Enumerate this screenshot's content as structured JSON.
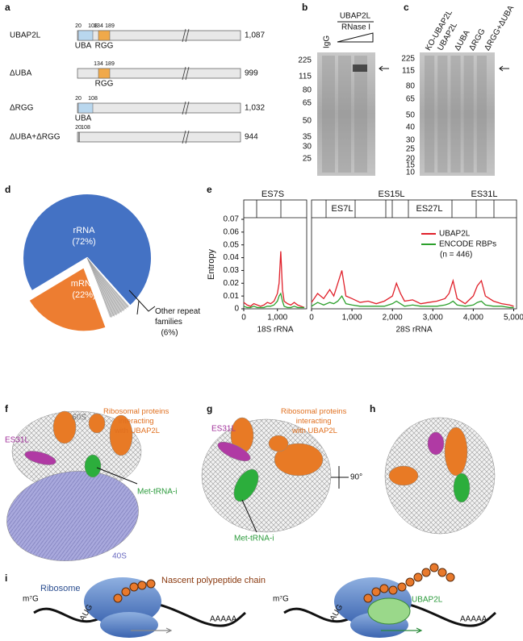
{
  "panel_letters": [
    "a",
    "b",
    "c",
    "d",
    "e",
    "f",
    "g",
    "h",
    "i"
  ],
  "a": {
    "rows": [
      {
        "name": "UBAP2L",
        "length": "1,087",
        "positions": [
          "20",
          "108",
          "134",
          "189"
        ],
        "domains": [
          "UBA",
          "RGG"
        ]
      },
      {
        "name": "ΔUBA",
        "length": "999",
        "positions": [
          "134",
          "189"
        ],
        "domains": [
          "RGG"
        ]
      },
      {
        "name": "ΔRGG",
        "length": "1,032",
        "positions": [
          "20",
          "108"
        ],
        "domains": [
          "UBA"
        ]
      },
      {
        "name": "ΔUBA+ΔRGG",
        "length": "944",
        "positions": [
          "20",
          "108"
        ],
        "domains": []
      }
    ]
  },
  "b": {
    "header": "UBAP2L",
    "treatment": "RNase I",
    "lanes": [
      "IgG"
    ],
    "markers": [
      "225",
      "115",
      "80",
      "65",
      "50",
      "35",
      "30",
      "25"
    ]
  },
  "c": {
    "lanes": [
      "KO-UBAP2L",
      "UBAP2L",
      "ΔUBA",
      "ΔRGG",
      "ΔRGG+ΔUBA"
    ],
    "markers": [
      "225",
      "115",
      "80",
      "65",
      "50",
      "40",
      "30",
      "25",
      "20",
      "15",
      "10"
    ]
  },
  "chart_data": [
    {
      "type": "pie",
      "categories": [
        "rRNA",
        "mRNA",
        "Other repeat families"
      ],
      "values": [
        72,
        22,
        6
      ],
      "value_labels": [
        "(72%)",
        "(22%)",
        "(6%)"
      ],
      "colors": [
        "#4472c4",
        "#ed7d31",
        "#c8c8c8"
      ]
    },
    {
      "type": "line",
      "ylabel": "Entropy",
      "ylim": [
        0,
        0.07
      ],
      "yticks": [
        0,
        0.01,
        0.02,
        0.03,
        0.04,
        0.05,
        0.06,
        0.07
      ],
      "region_labels": [
        "ES7S",
        "ES7L",
        "ES15L",
        "ES27L",
        "ES31L"
      ],
      "series": [
        {
          "name": "UBAP2L",
          "color": "#e0202a"
        },
        {
          "name": "ENCODE RBPs",
          "color": "#2ca02c"
        }
      ],
      "legend_note": "(n = 446)",
      "panels": [
        {
          "xlabel": "18S rRNA",
          "xlim": [
            0,
            1870
          ],
          "xticks": [
            0,
            {
              "value": 1000,
              "label": "1,000"
            }
          ],
          "x": [
            0,
            100,
            200,
            300,
            400,
            500,
            600,
            700,
            800,
            900,
            1000,
            1050,
            1100,
            1150,
            1200,
            1300,
            1400,
            1500,
            1600,
            1700,
            1800
          ],
          "values": [
            [
              0.005,
              0.003,
              0.002,
              0.004,
              0.003,
              0.002,
              0.003,
              0.005,
              0.004,
              0.006,
              0.012,
              0.02,
              0.045,
              0.015,
              0.006,
              0.004,
              0.003,
              0.005,
              0.003,
              0.002,
              0.001
            ],
            [
              0.002,
              0.001,
              0.001,
              0.002,
              0.001,
              0.001,
              0.001,
              0.002,
              0.002,
              0.003,
              0.006,
              0.01,
              0.012,
              0.006,
              0.002,
              0.001,
              0.001,
              0.002,
              0.001,
              0.001,
              0.001
            ]
          ]
        },
        {
          "xlabel": "28S rRNA",
          "xlim": [
            0,
            5070
          ],
          "xticks": [
            0,
            {
              "value": 1000,
              "label": "1,000"
            },
            {
              "value": 2000,
              "label": "2,000"
            },
            {
              "value": 3000,
              "label": "3,000"
            },
            {
              "value": 4000,
              "label": "4,000"
            },
            {
              "value": 5000,
              "label": "5,000"
            }
          ],
          "x": [
            0,
            150,
            300,
            450,
            550,
            650,
            750,
            850,
            1000,
            1200,
            1400,
            1600,
            1800,
            2000,
            2100,
            2200,
            2300,
            2500,
            2700,
            2900,
            3100,
            3300,
            3400,
            3500,
            3600,
            3800,
            4000,
            4100,
            4200,
            4300,
            4500,
            4700,
            4900,
            5000
          ],
          "values": [
            [
              0.005,
              0.012,
              0.008,
              0.015,
              0.01,
              0.02,
              0.03,
              0.01,
              0.008,
              0.005,
              0.006,
              0.004,
              0.006,
              0.01,
              0.02,
              0.012,
              0.006,
              0.007,
              0.004,
              0.005,
              0.006,
              0.008,
              0.012,
              0.022,
              0.008,
              0.004,
              0.01,
              0.018,
              0.022,
              0.01,
              0.006,
              0.004,
              0.003,
              0.002
            ],
            [
              0.002,
              0.005,
              0.003,
              0.005,
              0.004,
              0.006,
              0.01,
              0.004,
              0.003,
              0.002,
              0.002,
              0.002,
              0.002,
              0.004,
              0.006,
              0.004,
              0.002,
              0.003,
              0.002,
              0.002,
              0.002,
              0.003,
              0.004,
              0.006,
              0.003,
              0.002,
              0.003,
              0.005,
              0.006,
              0.003,
              0.002,
              0.002,
              0.001,
              0.001
            ]
          ]
        }
      ]
    }
  ],
  "f": {
    "subunit_large": "60S",
    "proteins": "Ribosomal proteins interacting with UBAP2L",
    "expansion": "ES31L",
    "trna": "Met-tRNA-i",
    "subunit_small": "40S"
  },
  "g": {
    "proteins": "Ribosomal proteins interacting with UBAP2L",
    "expansion": "ES31L",
    "trna": "Met-tRNA-i",
    "rotation": "90°"
  },
  "i": {
    "left": {
      "ribosome": "Ribosome",
      "chain": "Nascent polypeptide chain",
      "cap": "m⁷G",
      "start": "AUG",
      "tail": "AAAAA"
    },
    "right": {
      "factor": "UBAP2L",
      "cap": "m⁷G",
      "start": "AUG",
      "tail": "AAAAA"
    }
  }
}
